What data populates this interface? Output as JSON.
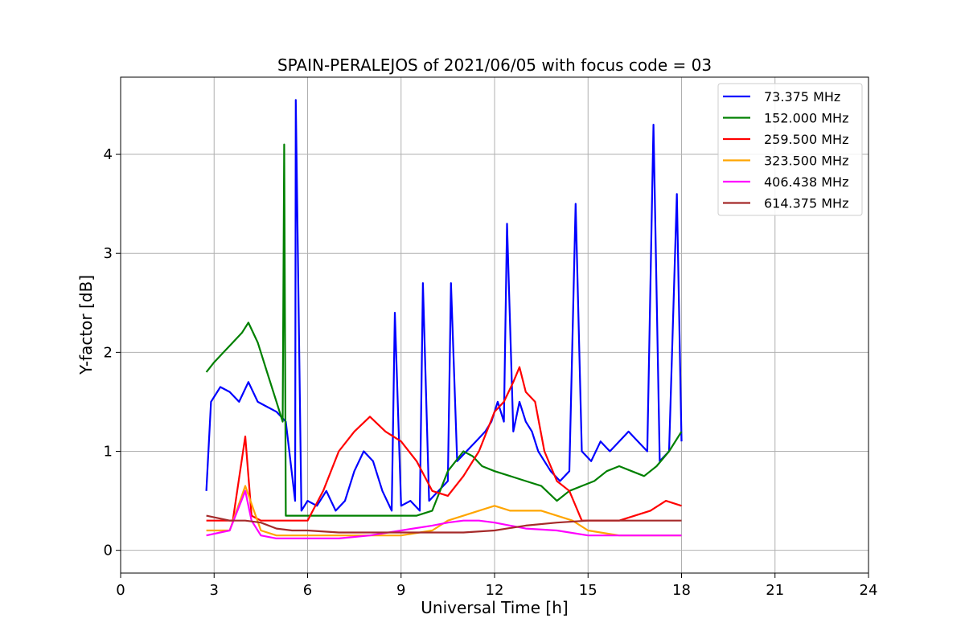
{
  "chart_data": {
    "type": "line",
    "title": "SPAIN-PERALEJOS of 2021/06/05 with focus code = 03",
    "xlabel": "Universal Time [h]",
    "ylabel": "Y-factor [dB]",
    "xlim": [
      0,
      24
    ],
    "ylim": [
      -0.23,
      4.78
    ],
    "xticks": [
      0,
      3,
      6,
      9,
      12,
      15,
      18,
      21,
      24
    ],
    "xtick_labels": [
      "0",
      "3",
      "6",
      "9",
      "12",
      "15",
      "18",
      "21",
      "24"
    ],
    "yticks": [
      0,
      1,
      2,
      3,
      4
    ],
    "ytick_labels": [
      "0",
      "1",
      "2",
      "3",
      "4"
    ],
    "grid": true,
    "legend_position": "top-right",
    "series": [
      {
        "name": " 73.375 MHz",
        "color": "#0000ff",
        "x": [
          2.75,
          2.9,
          3.2,
          3.5,
          3.8,
          4.1,
          4.4,
          4.7,
          5.0,
          5.3,
          5.6,
          5.62,
          5.8,
          6.0,
          6.3,
          6.6,
          6.9,
          7.2,
          7.5,
          7.8,
          8.1,
          8.4,
          8.7,
          8.8,
          9.0,
          9.3,
          9.6,
          9.7,
          9.9,
          10.2,
          10.5,
          10.6,
          10.8,
          11.1,
          11.4,
          11.7,
          11.9,
          12.1,
          12.3,
          12.4,
          12.6,
          12.8,
          13.0,
          13.2,
          13.4,
          13.6,
          13.8,
          14.1,
          14.4,
          14.6,
          14.8,
          15.1,
          15.4,
          15.7,
          16.0,
          16.3,
          16.6,
          16.9,
          17.1,
          17.3,
          17.6,
          17.85,
          18.0
        ],
        "values": [
          0.6,
          1.5,
          1.65,
          1.6,
          1.5,
          1.7,
          1.5,
          1.45,
          1.4,
          1.3,
          0.5,
          4.55,
          0.4,
          0.5,
          0.45,
          0.6,
          0.4,
          0.5,
          0.8,
          1.0,
          0.9,
          0.6,
          0.4,
          2.4,
          0.45,
          0.5,
          0.4,
          2.7,
          0.5,
          0.6,
          0.7,
          2.7,
          0.9,
          1.0,
          1.1,
          1.2,
          1.3,
          1.5,
          1.3,
          3.3,
          1.2,
          1.5,
          1.3,
          1.2,
          1.0,
          0.9,
          0.8,
          0.7,
          0.8,
          3.5,
          1.0,
          0.9,
          1.1,
          1.0,
          1.1,
          1.2,
          1.1,
          1.0,
          4.3,
          0.9,
          1.0,
          3.6,
          1.1
        ]
      },
      {
        "name": "152.000 MHz",
        "color": "#008000",
        "x": [
          2.75,
          3.0,
          3.3,
          3.6,
          3.9,
          4.1,
          4.4,
          4.7,
          5.0,
          5.2,
          5.25,
          5.3,
          5.6,
          6.0,
          6.5,
          7.0,
          7.5,
          8.0,
          8.5,
          9.0,
          9.5,
          10.0,
          10.5,
          11.0,
          11.3,
          11.6,
          12.0,
          12.5,
          13.0,
          13.5,
          14.0,
          14.4,
          14.8,
          15.2,
          15.6,
          16.0,
          16.4,
          16.8,
          17.2,
          17.6,
          18.0
        ],
        "values": [
          1.8,
          1.9,
          2.0,
          2.1,
          2.2,
          2.3,
          2.1,
          1.8,
          1.5,
          1.3,
          4.1,
          0.35,
          0.35,
          0.35,
          0.35,
          0.35,
          0.35,
          0.35,
          0.35,
          0.35,
          0.35,
          0.4,
          0.8,
          1.0,
          0.95,
          0.85,
          0.8,
          0.75,
          0.7,
          0.65,
          0.5,
          0.6,
          0.65,
          0.7,
          0.8,
          0.85,
          0.8,
          0.75,
          0.85,
          1.0,
          1.2
        ]
      },
      {
        "name": "259.500 MHz",
        "color": "#ff0000",
        "x": [
          2.75,
          3.2,
          3.6,
          4.0,
          4.2,
          4.5,
          5.0,
          5.5,
          6.0,
          6.5,
          7.0,
          7.5,
          8.0,
          8.5,
          9.0,
          9.5,
          10.0,
          10.5,
          11.0,
          11.5,
          12.0,
          12.3,
          12.6,
          12.8,
          13.0,
          13.3,
          13.6,
          14.0,
          14.4,
          14.8,
          15.2,
          15.6,
          16.0,
          16.5,
          17.0,
          17.5,
          18.0
        ],
        "values": [
          0.3,
          0.3,
          0.3,
          1.15,
          0.35,
          0.3,
          0.3,
          0.3,
          0.3,
          0.6,
          1.0,
          1.2,
          1.35,
          1.2,
          1.1,
          0.9,
          0.6,
          0.55,
          0.75,
          1.0,
          1.4,
          1.5,
          1.7,
          1.85,
          1.6,
          1.5,
          1.0,
          0.7,
          0.6,
          0.3,
          0.3,
          0.3,
          0.3,
          0.35,
          0.4,
          0.5,
          0.45
        ]
      },
      {
        "name": "323.500 MHz",
        "color": "#ffa500",
        "x": [
          2.75,
          3.5,
          4.0,
          4.5,
          5.0,
          5.5,
          6.0,
          7.0,
          8.0,
          9.0,
          10.0,
          10.5,
          11.0,
          11.5,
          12.0,
          12.5,
          13.0,
          13.5,
          14.0,
          14.5,
          15.0,
          16.0,
          17.0,
          18.0
        ],
        "values": [
          0.2,
          0.2,
          0.65,
          0.2,
          0.15,
          0.15,
          0.15,
          0.15,
          0.15,
          0.15,
          0.2,
          0.3,
          0.35,
          0.4,
          0.45,
          0.4,
          0.4,
          0.4,
          0.35,
          0.3,
          0.2,
          0.15,
          0.15,
          0.15
        ]
      },
      {
        "name": "406.438 MHz",
        "color": "#ff00ff",
        "x": [
          2.75,
          3.5,
          4.0,
          4.2,
          4.5,
          5.0,
          5.5,
          6.0,
          7.0,
          8.0,
          9.0,
          10.0,
          10.5,
          11.0,
          11.5,
          12.0,
          12.5,
          13.0,
          14.0,
          15.0,
          16.0,
          17.0,
          18.0
        ],
        "values": [
          0.15,
          0.2,
          0.6,
          0.3,
          0.15,
          0.12,
          0.12,
          0.12,
          0.12,
          0.15,
          0.2,
          0.25,
          0.28,
          0.3,
          0.3,
          0.28,
          0.25,
          0.22,
          0.2,
          0.15,
          0.15,
          0.15,
          0.15
        ]
      },
      {
        "name": "614.375 MHz",
        "color": "#a52a2a",
        "x": [
          2.75,
          3.5,
          4.0,
          4.5,
          5.0,
          5.5,
          6.0,
          7.0,
          8.0,
          9.0,
          10.0,
          11.0,
          12.0,
          13.0,
          14.0,
          15.0,
          16.0,
          17.0,
          18.0
        ],
        "values": [
          0.35,
          0.3,
          0.3,
          0.28,
          0.22,
          0.2,
          0.2,
          0.18,
          0.18,
          0.18,
          0.18,
          0.18,
          0.2,
          0.25,
          0.28,
          0.3,
          0.3,
          0.3,
          0.3
        ]
      }
    ]
  }
}
